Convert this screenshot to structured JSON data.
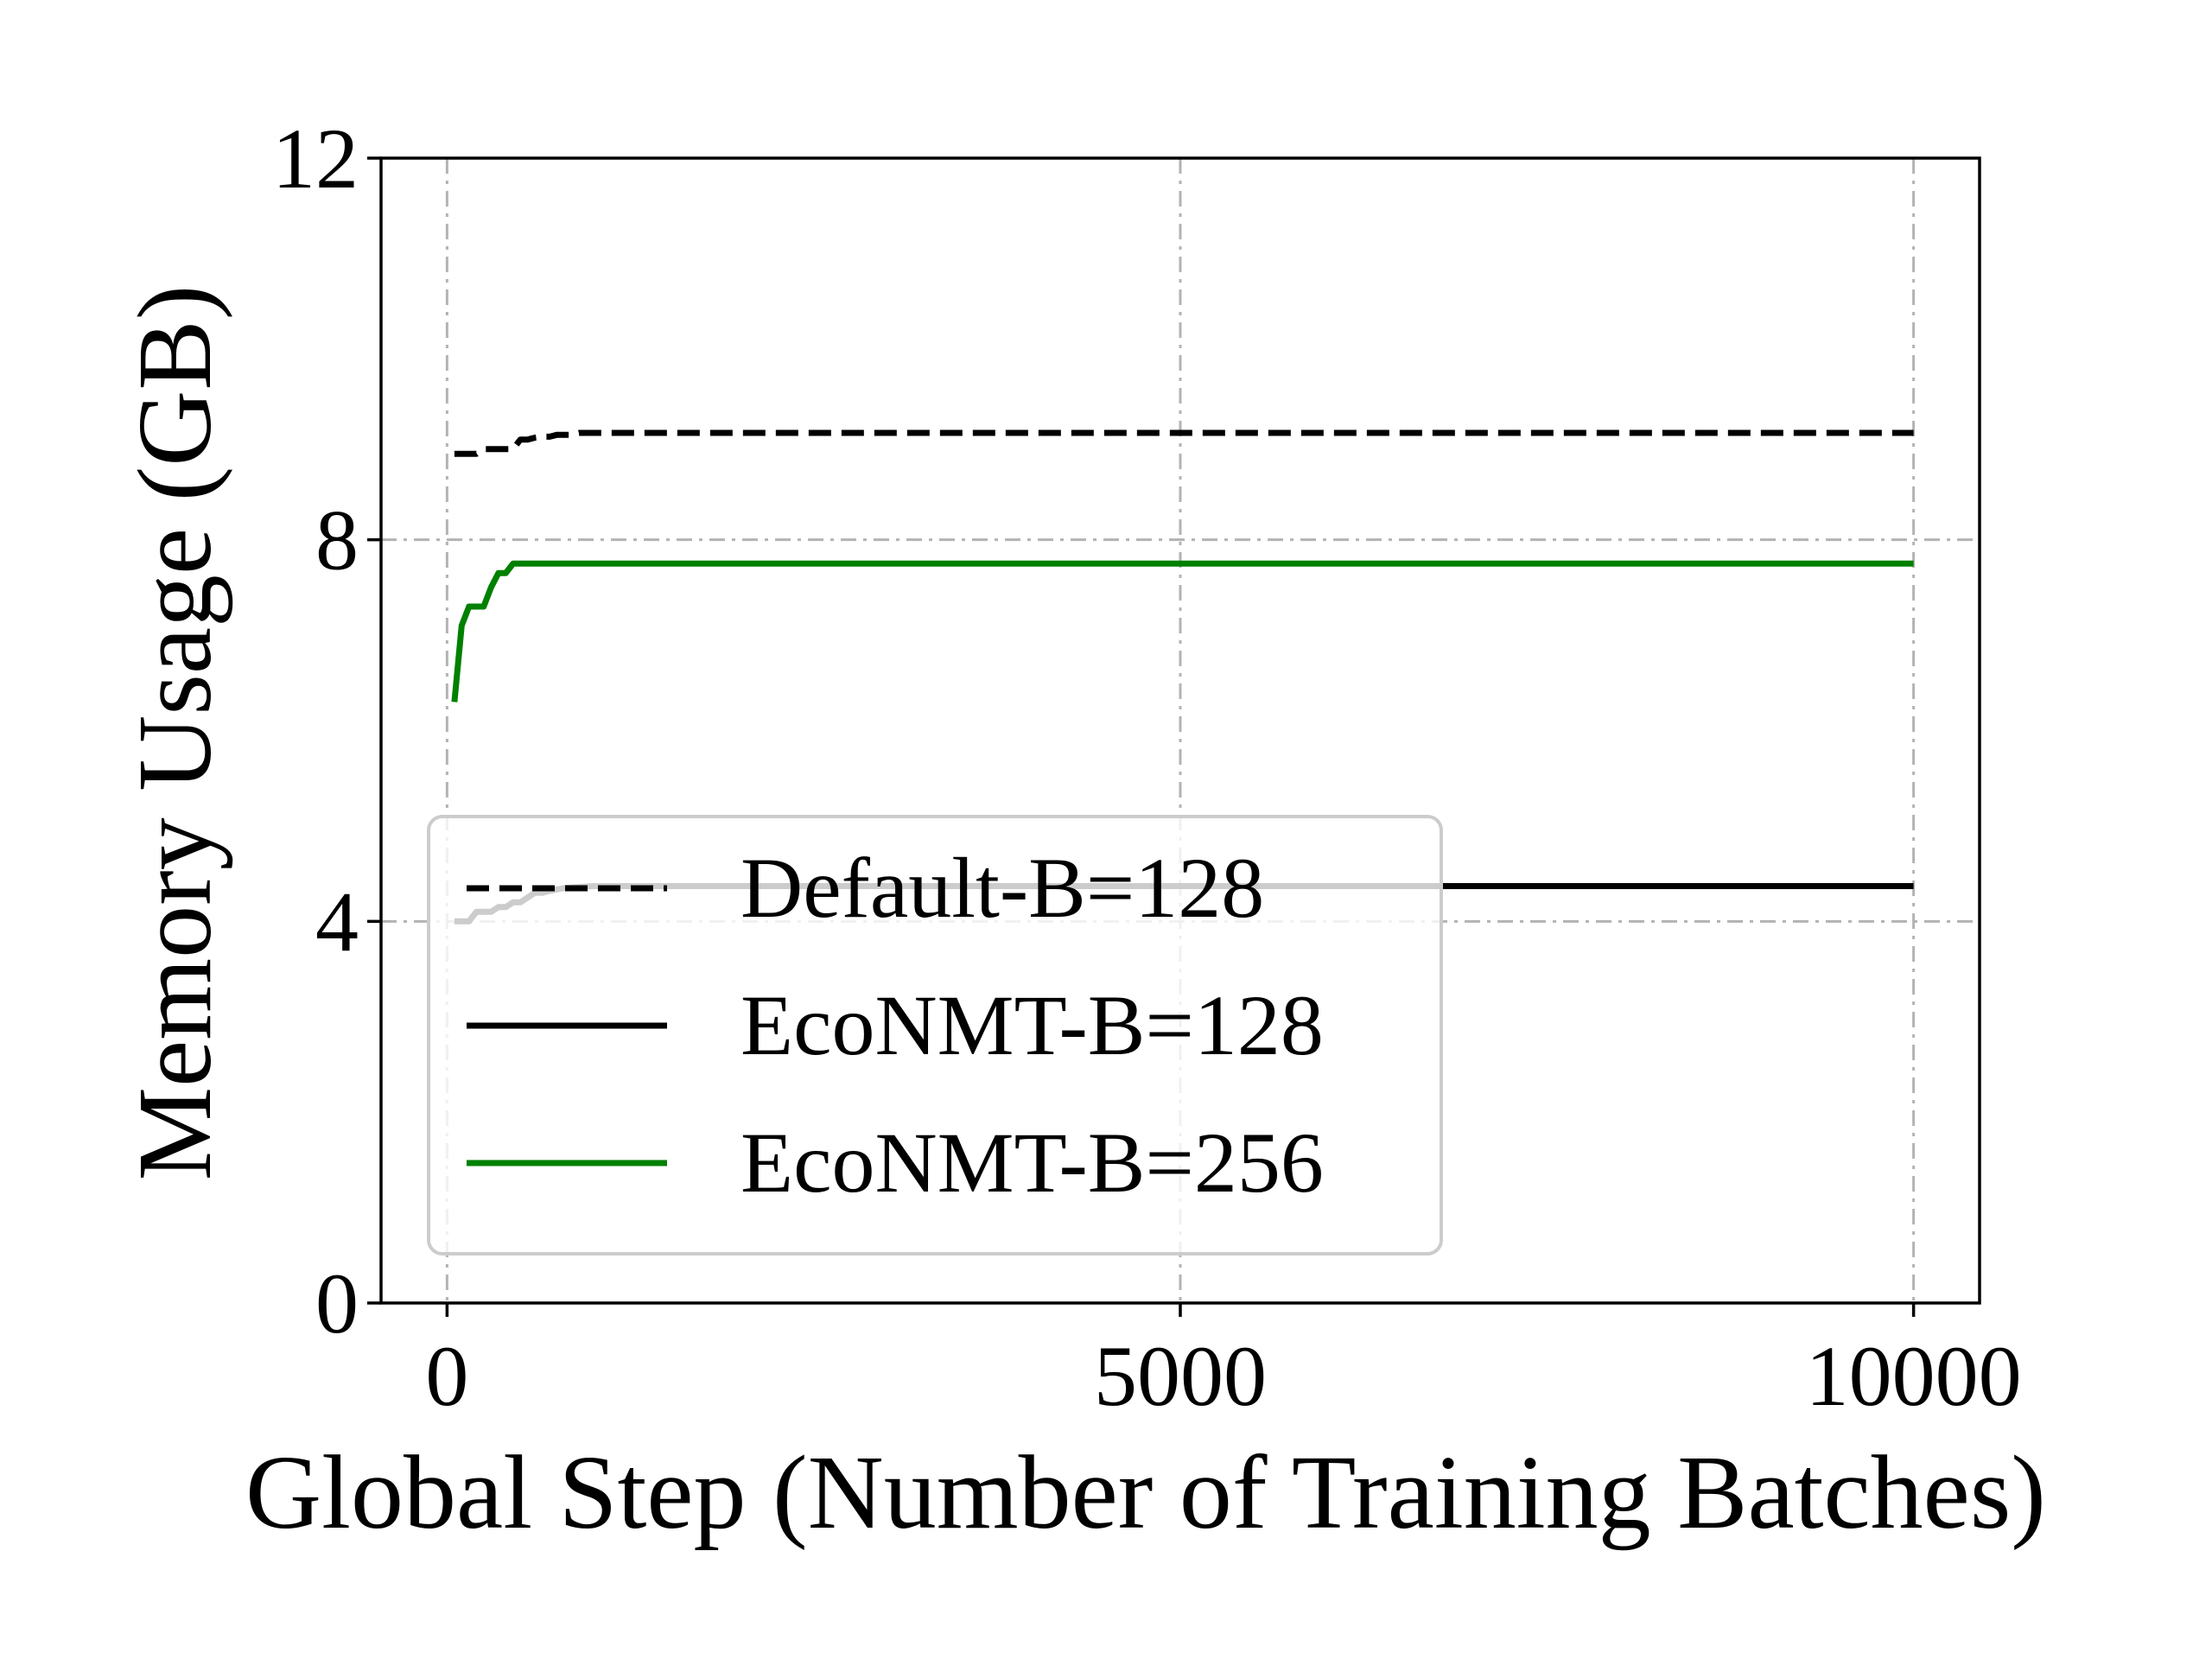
{
  "chart_data": {
    "type": "line",
    "xlabel": "Global Step (Number of Training Batches)",
    "ylabel": "Memory Usage (GB)",
    "xlim": [
      -450,
      10450
    ],
    "ylim": [
      0,
      12
    ],
    "xticks": [
      0,
      5000,
      10000
    ],
    "yticks": [
      0,
      4,
      8,
      12
    ],
    "grid": true,
    "legend_position": "lower-left",
    "series": [
      {
        "name": "Default-B=128",
        "color": "#000000",
        "style": "dashed",
        "x": [
          50,
          100,
          150,
          200,
          250,
          300,
          350,
          400,
          450,
          500,
          550,
          600,
          650,
          700,
          750,
          800,
          850,
          900,
          1000,
          2000,
          4000,
          6000,
          8000,
          10000
        ],
        "y": [
          8.9,
          8.9,
          8.9,
          8.9,
          8.95,
          8.95,
          8.95,
          8.95,
          8.95,
          9.05,
          9.05,
          9.07,
          9.08,
          9.08,
          9.1,
          9.1,
          9.1,
          9.12,
          9.12,
          9.12,
          9.12,
          9.12,
          9.12,
          9.12
        ]
      },
      {
        "name": "EcoNMT-B=128",
        "color": "#000000",
        "style": "solid",
        "x": [
          50,
          100,
          150,
          200,
          250,
          300,
          350,
          400,
          450,
          500,
          550,
          600,
          650,
          700,
          800,
          900,
          1000,
          2000,
          4000,
          6000,
          8000,
          10000
        ],
        "y": [
          4.0,
          4.0,
          4.0,
          4.1,
          4.1,
          4.1,
          4.15,
          4.15,
          4.2,
          4.2,
          4.25,
          4.3,
          4.3,
          4.32,
          4.35,
          4.36,
          4.37,
          4.37,
          4.37,
          4.37,
          4.37,
          4.37
        ]
      },
      {
        "name": "EcoNMT-B=256",
        "color": "#008000",
        "style": "solid",
        "x": [
          50,
          100,
          150,
          200,
          250,
          300,
          350,
          400,
          450,
          500,
          600,
          800,
          1000,
          2000,
          4000,
          6000,
          8000,
          10000
        ],
        "y": [
          6.3,
          7.1,
          7.3,
          7.3,
          7.3,
          7.5,
          7.65,
          7.65,
          7.75,
          7.75,
          7.75,
          7.75,
          7.75,
          7.75,
          7.75,
          7.75,
          7.75,
          7.75
        ]
      }
    ]
  }
}
